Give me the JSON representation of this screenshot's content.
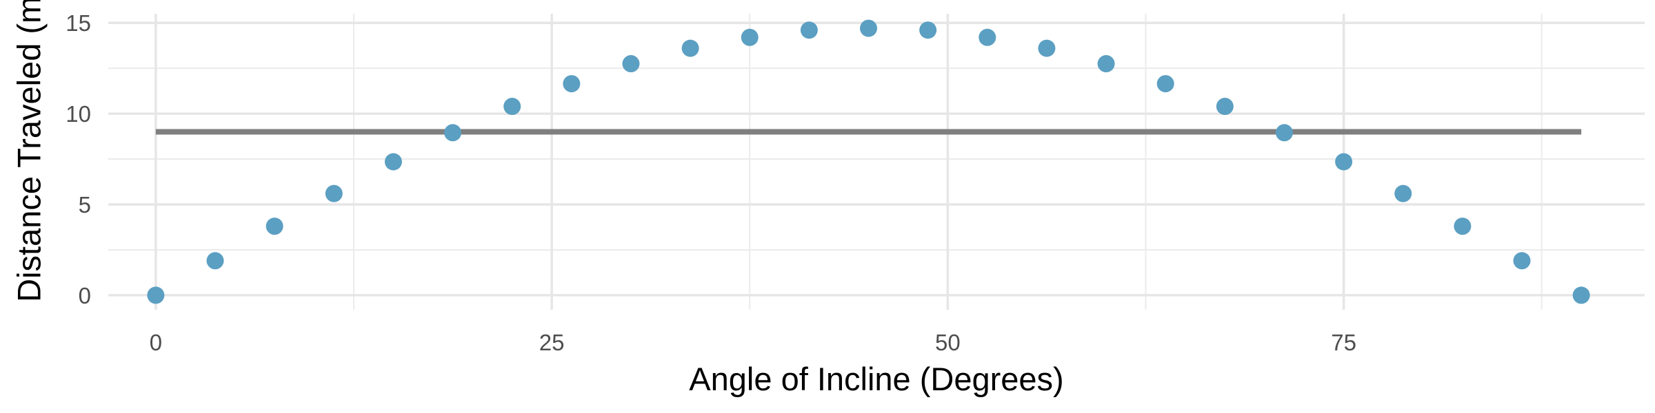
{
  "chart_data": {
    "type": "scatter",
    "title": "",
    "xlabel": "Angle of Incline (Degrees)",
    "ylabel": "Distance Traveled (m)",
    "xlim": [
      -3,
      94
    ],
    "ylim": [
      -0.8,
      15.5
    ],
    "x_ticks": [
      0,
      25,
      50,
      75
    ],
    "x_tick_labels": [
      "0",
      "25",
      "50",
      "75"
    ],
    "x_minor_ticks": [
      12.5,
      37.5,
      62.5,
      87.5
    ],
    "y_ticks": [
      0,
      5,
      10,
      15
    ],
    "y_tick_labels": [
      "0",
      "5",
      "10",
      "15"
    ],
    "y_minor_ticks": [
      2.5,
      7.5,
      12.5
    ],
    "grid": true,
    "point_color": "#5b9fc2",
    "line_color": "#7f7f7f",
    "series": [
      {
        "x": [
          0,
          3.75,
          7.5,
          11.25,
          15,
          18.75,
          22.5,
          26.25,
          30,
          33.75,
          37.5,
          41.25,
          45,
          48.75,
          52.5,
          56.25,
          60,
          63.75,
          67.5,
          71.25,
          75,
          78.75,
          82.5,
          86.25,
          90
        ],
        "y": [
          0,
          1.9,
          3.8,
          5.6,
          7.35,
          8.95,
          10.4,
          11.65,
          12.75,
          13.6,
          14.2,
          14.6,
          14.7,
          14.6,
          14.2,
          13.6,
          12.75,
          11.65,
          10.4,
          8.95,
          7.35,
          5.6,
          3.8,
          1.9,
          0
        ]
      }
    ],
    "reference_line": {
      "x": [
        0,
        90
      ],
      "y": [
        9,
        9
      ]
    }
  }
}
